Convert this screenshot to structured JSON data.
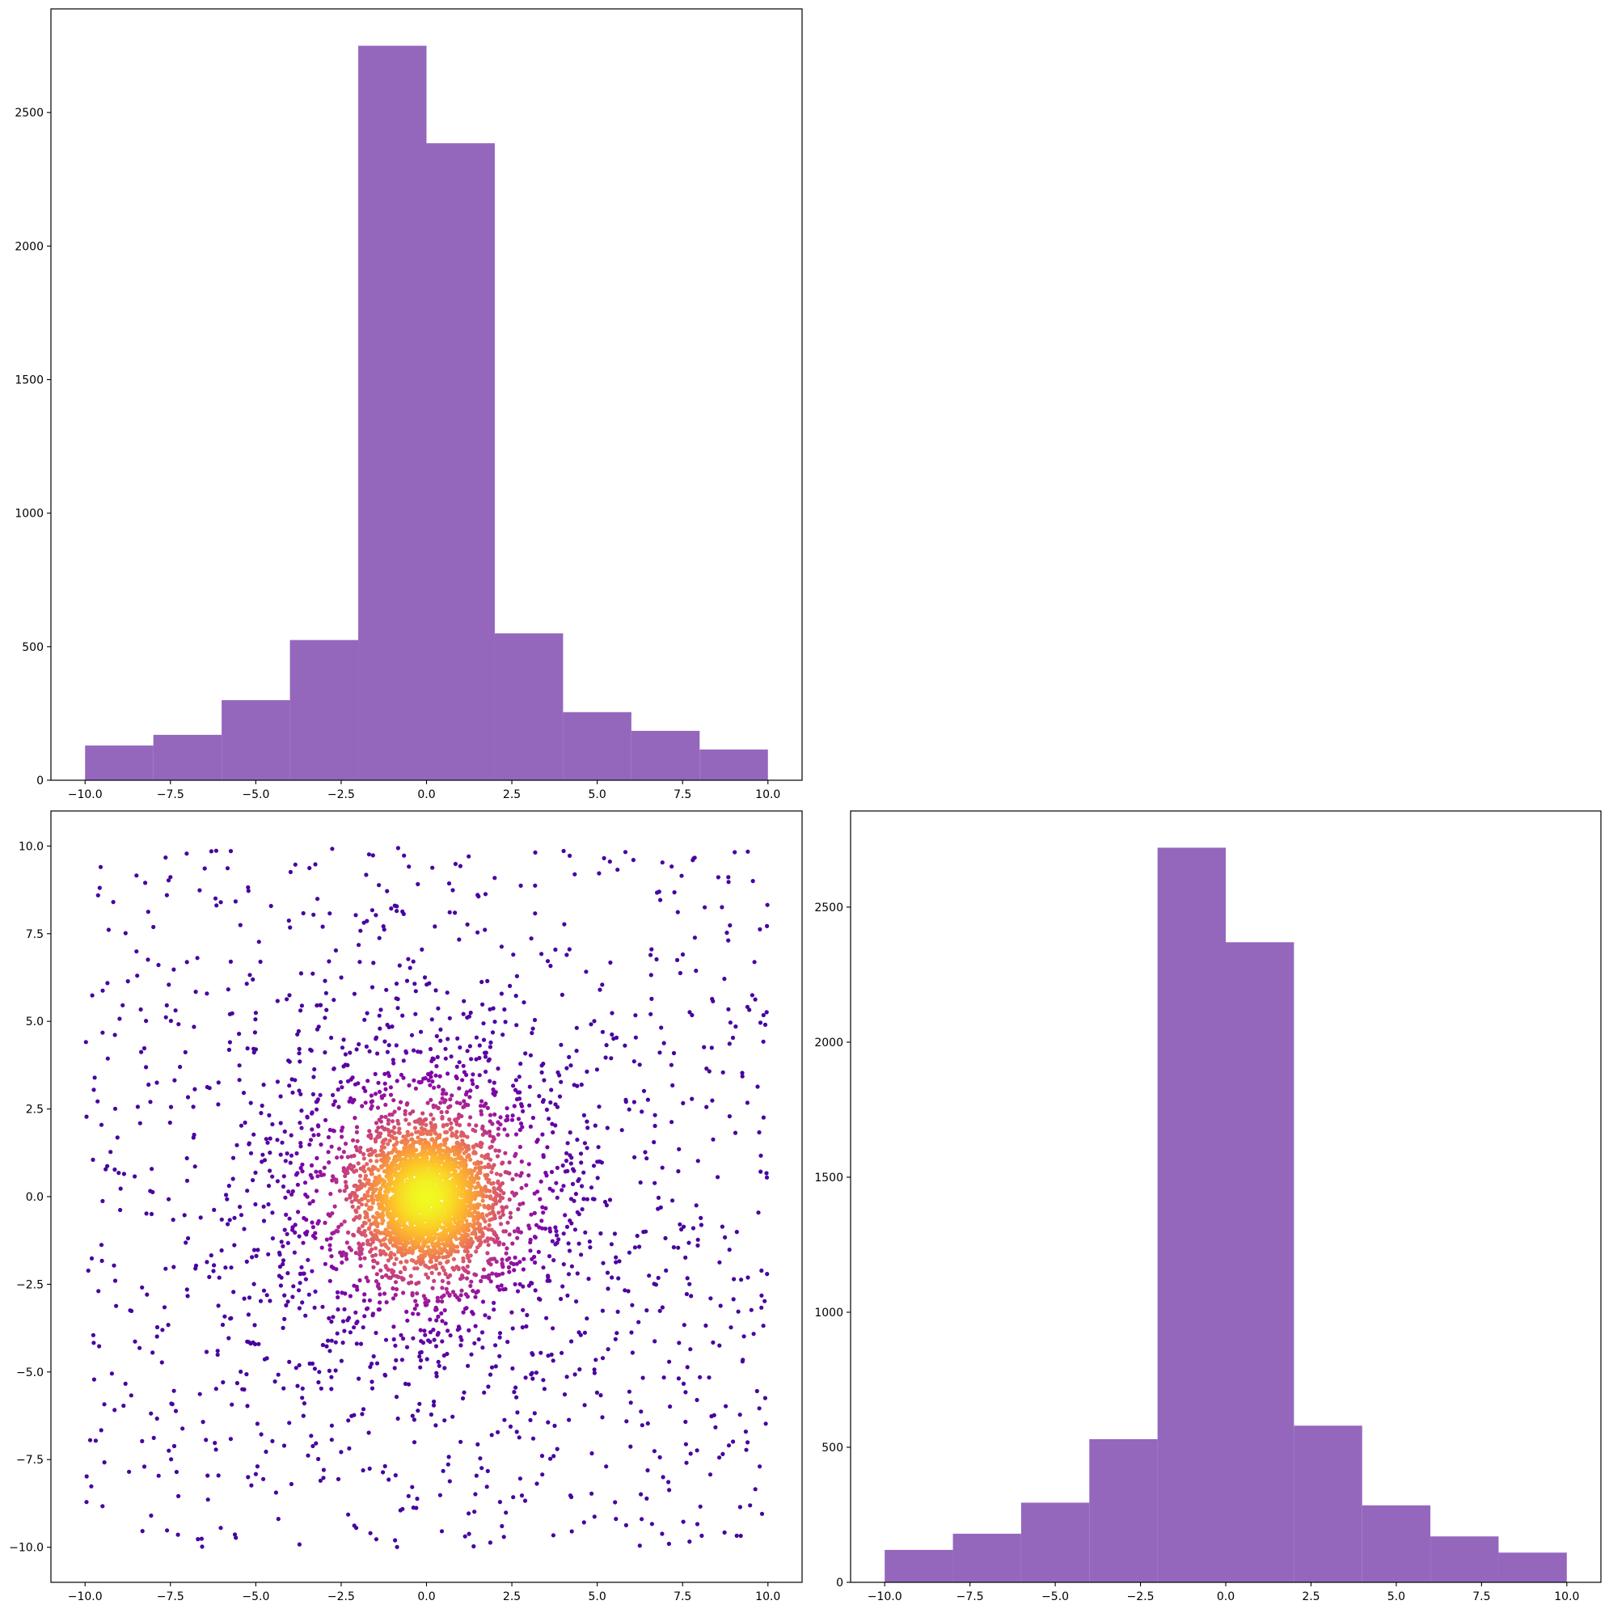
{
  "colors": {
    "bar": "#9467bd",
    "scatter_colormap": "plasma",
    "scatter_low": "#2c0594",
    "scatter_high": "#f0f921"
  },
  "chart_data": [
    {
      "id": "top-left-histogram",
      "type": "bar",
      "title": "",
      "xlabel": "",
      "ylabel": "",
      "bin_edges": [
        -10,
        -8,
        -6,
        -4,
        -2,
        0,
        2,
        4,
        6,
        8,
        10
      ],
      "values": [
        130,
        170,
        300,
        525,
        2750,
        2385,
        550,
        255,
        185,
        115
      ],
      "xlim": [
        -11,
        11
      ],
      "ylim": [
        0,
        2888
      ],
      "xticks": [
        -10.0,
        -7.5,
        -5.0,
        -2.5,
        0.0,
        2.5,
        5.0,
        7.5,
        10.0
      ],
      "xtick_labels": [
        "−10.0",
        "−7.5",
        "−5.0",
        "−2.5",
        "0.0",
        "2.5",
        "5.0",
        "7.5",
        "10.0"
      ],
      "yticks": [
        0,
        500,
        1000,
        1500,
        2000,
        2500
      ],
      "ytick_labels": [
        "0",
        "500",
        "1000",
        "1500",
        "2000",
        "2500"
      ]
    },
    {
      "id": "bottom-left-scatter",
      "type": "scatter",
      "title": "",
      "xlabel": "",
      "ylabel": "",
      "description": "Points spread over x,y in [-10,10], densely concentrated around (0,0); color encodes local density (plasma colormap, dark purple sparse to yellow dense).",
      "x_range": [
        -10,
        10
      ],
      "y_range": [
        -10,
        10
      ],
      "center": [
        0,
        0
      ],
      "xlim": [
        -11,
        11
      ],
      "ylim": [
        -11,
        11
      ],
      "xticks": [
        -10.0,
        -7.5,
        -5.0,
        -2.5,
        0.0,
        2.5,
        5.0,
        7.5,
        10.0
      ],
      "xtick_labels": [
        "−10.0",
        "−7.5",
        "−5.0",
        "−2.5",
        "0.0",
        "2.5",
        "5.0",
        "7.5",
        "10.0"
      ],
      "yticks": [
        -10.0,
        -7.5,
        -5.0,
        -2.5,
        0.0,
        2.5,
        5.0,
        7.5,
        10.0
      ],
      "ytick_labels": [
        "−10.0",
        "−7.5",
        "−5.0",
        "−2.5",
        "0.0",
        "2.5",
        "5.0",
        "7.5",
        "10.0"
      ]
    },
    {
      "id": "bottom-right-histogram",
      "type": "bar",
      "title": "",
      "xlabel": "",
      "ylabel": "",
      "bin_edges": [
        -10,
        -8,
        -6,
        -4,
        -2,
        0,
        2,
        4,
        6,
        8,
        10
      ],
      "values": [
        120,
        180,
        295,
        530,
        2720,
        2370,
        580,
        285,
        170,
        110
      ],
      "xlim": [
        -11,
        11
      ],
      "ylim": [
        0,
        2856
      ],
      "xticks": [
        -10.0,
        -7.5,
        -5.0,
        -2.5,
        0.0,
        2.5,
        5.0,
        7.5,
        10.0
      ],
      "xtick_labels": [
        "−10.0",
        "−7.5",
        "−5.0",
        "−2.5",
        "0.0",
        "2.5",
        "5.0",
        "7.5",
        "10.0"
      ],
      "yticks": [
        0,
        500,
        1000,
        1500,
        2000,
        2500
      ],
      "ytick_labels": [
        "0",
        "500",
        "1000",
        "1500",
        "2000",
        "2500"
      ]
    }
  ]
}
